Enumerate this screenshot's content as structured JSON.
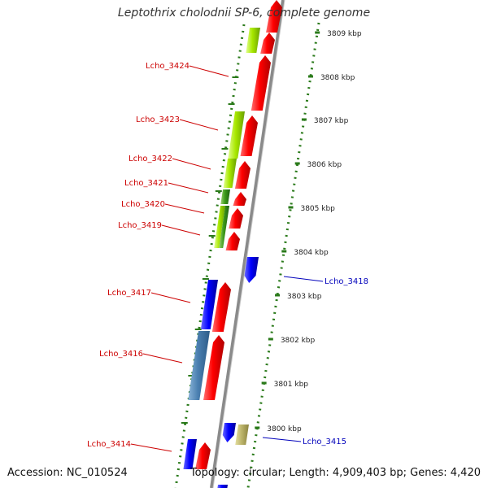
{
  "title": "Leptothrix cholodnii SP-6, complete genome",
  "footer": {
    "accession": "Accession: NC_010524",
    "topology": "Topology: circular; Length: 4,909,403 bp; Genes: 4,420"
  },
  "colors": {
    "backbone": "#8a8a8a",
    "tick": "#2a7a1a",
    "label_red": "#cc0000",
    "label_blue": "#0000bb",
    "gene_red": "#ff0000",
    "gene_blue": "#0000ff",
    "gene_steel": "#4a7fb0",
    "gene_lime": "#a8e800",
    "gene_green": "#3d9a1a",
    "gene_khaki": "#bdb56b",
    "ruler_text": "#222222"
  },
  "ruler": {
    "unit": "kbp",
    "positions": [
      3809,
      3808,
      3807,
      3806,
      3805,
      3804,
      3803,
      3802,
      3801,
      3800
    ],
    "labels": [
      "3809 kbp",
      "3808 kbp",
      "3807 kbp",
      "3806 kbp",
      "3805 kbp",
      "3804 kbp",
      "3803 kbp",
      "3802 kbp",
      "3801 kbp",
      "3800 kbp"
    ]
  },
  "gene_labels": {
    "left": [
      "Lcho_3424",
      "Lcho_3423",
      "Lcho_3422",
      "Lcho_3421",
      "Lcho_3420",
      "Lcho_3419",
      "Lcho_3417",
      "Lcho_3416",
      "Lcho_3414"
    ],
    "right": [
      "Lcho_3418",
      "Lcho_3415"
    ]
  }
}
